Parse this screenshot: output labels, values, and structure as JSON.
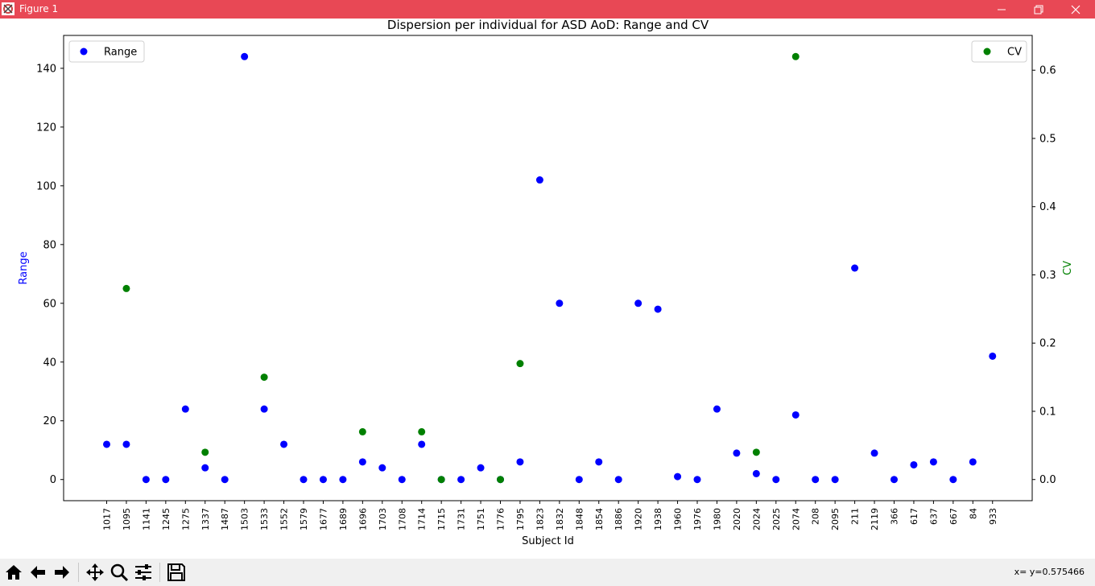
{
  "window": {
    "title": "Figure 1",
    "minimize_icon": "minimize-icon",
    "maximize_icon": "maximize-icon",
    "close_icon": "close-icon"
  },
  "toolbar": {
    "buttons": [
      "home-icon",
      "back-arrow-icon",
      "forward-arrow-icon",
      "pan-icon",
      "zoom-icon",
      "configure-subplots-icon",
      "save-icon"
    ],
    "coords": "x= y=0.575466"
  },
  "colors": {
    "range": "#0000ff",
    "cv": "#008000",
    "titlebar": "#e84855"
  },
  "chart_data": {
    "type": "scatter",
    "title": "Dispersion per individual for ASD AoD: Range and CV",
    "xlabel": "Subject Id",
    "ylabel": "Range",
    "y2label": "CV",
    "categories": [
      "1017",
      "1095",
      "1141",
      "1245",
      "1275",
      "1337",
      "1487",
      "1503",
      "1533",
      "1552",
      "1579",
      "1677",
      "1689",
      "1696",
      "1703",
      "1708",
      "1714",
      "1715",
      "1731",
      "1751",
      "1776",
      "1795",
      "1823",
      "1832",
      "1848",
      "1854",
      "1886",
      "1920",
      "1938",
      "1960",
      "1976",
      "1980",
      "2020",
      "2024",
      "2025",
      "2074",
      "208",
      "2095",
      "211",
      "2119",
      "366",
      "617",
      "637",
      "667",
      "84",
      "933"
    ],
    "ylim": [
      -7.2,
      151.2
    ],
    "y2lim": [
      -0.031,
      0.651
    ],
    "yticks": [
      0,
      20,
      40,
      60,
      80,
      100,
      120,
      140
    ],
    "y2ticks": [
      "0.0",
      "0.1",
      "0.2",
      "0.3",
      "0.4",
      "0.5",
      "0.6"
    ],
    "legend_left": {
      "label": "Range",
      "position": "upper left"
    },
    "legend_right": {
      "label": "CV",
      "position": "upper right"
    },
    "series": [
      {
        "name": "Range",
        "axis": "left",
        "values": [
          12,
          12,
          0,
          0,
          24,
          4,
          0,
          144,
          24,
          12,
          0,
          0,
          0,
          6,
          4,
          0,
          12,
          0,
          0,
          4,
          0,
          6,
          102,
          60,
          0,
          6,
          0,
          60,
          58,
          1,
          0,
          24,
          9,
          2,
          0,
          22,
          0,
          0,
          72,
          9,
          0,
          5,
          6,
          0,
          6,
          42
        ]
      },
      {
        "name": "CV",
        "axis": "right",
        "values": [
          null,
          0.28,
          null,
          null,
          null,
          0.04,
          null,
          null,
          0.15,
          null,
          null,
          null,
          null,
          0.07,
          null,
          null,
          0.07,
          0,
          null,
          null,
          0,
          0.17,
          null,
          null,
          null,
          null,
          null,
          null,
          null,
          null,
          null,
          null,
          null,
          0.04,
          null,
          0.62,
          null,
          null,
          null,
          null,
          null,
          null,
          null,
          null,
          null,
          null
        ]
      }
    ]
  }
}
